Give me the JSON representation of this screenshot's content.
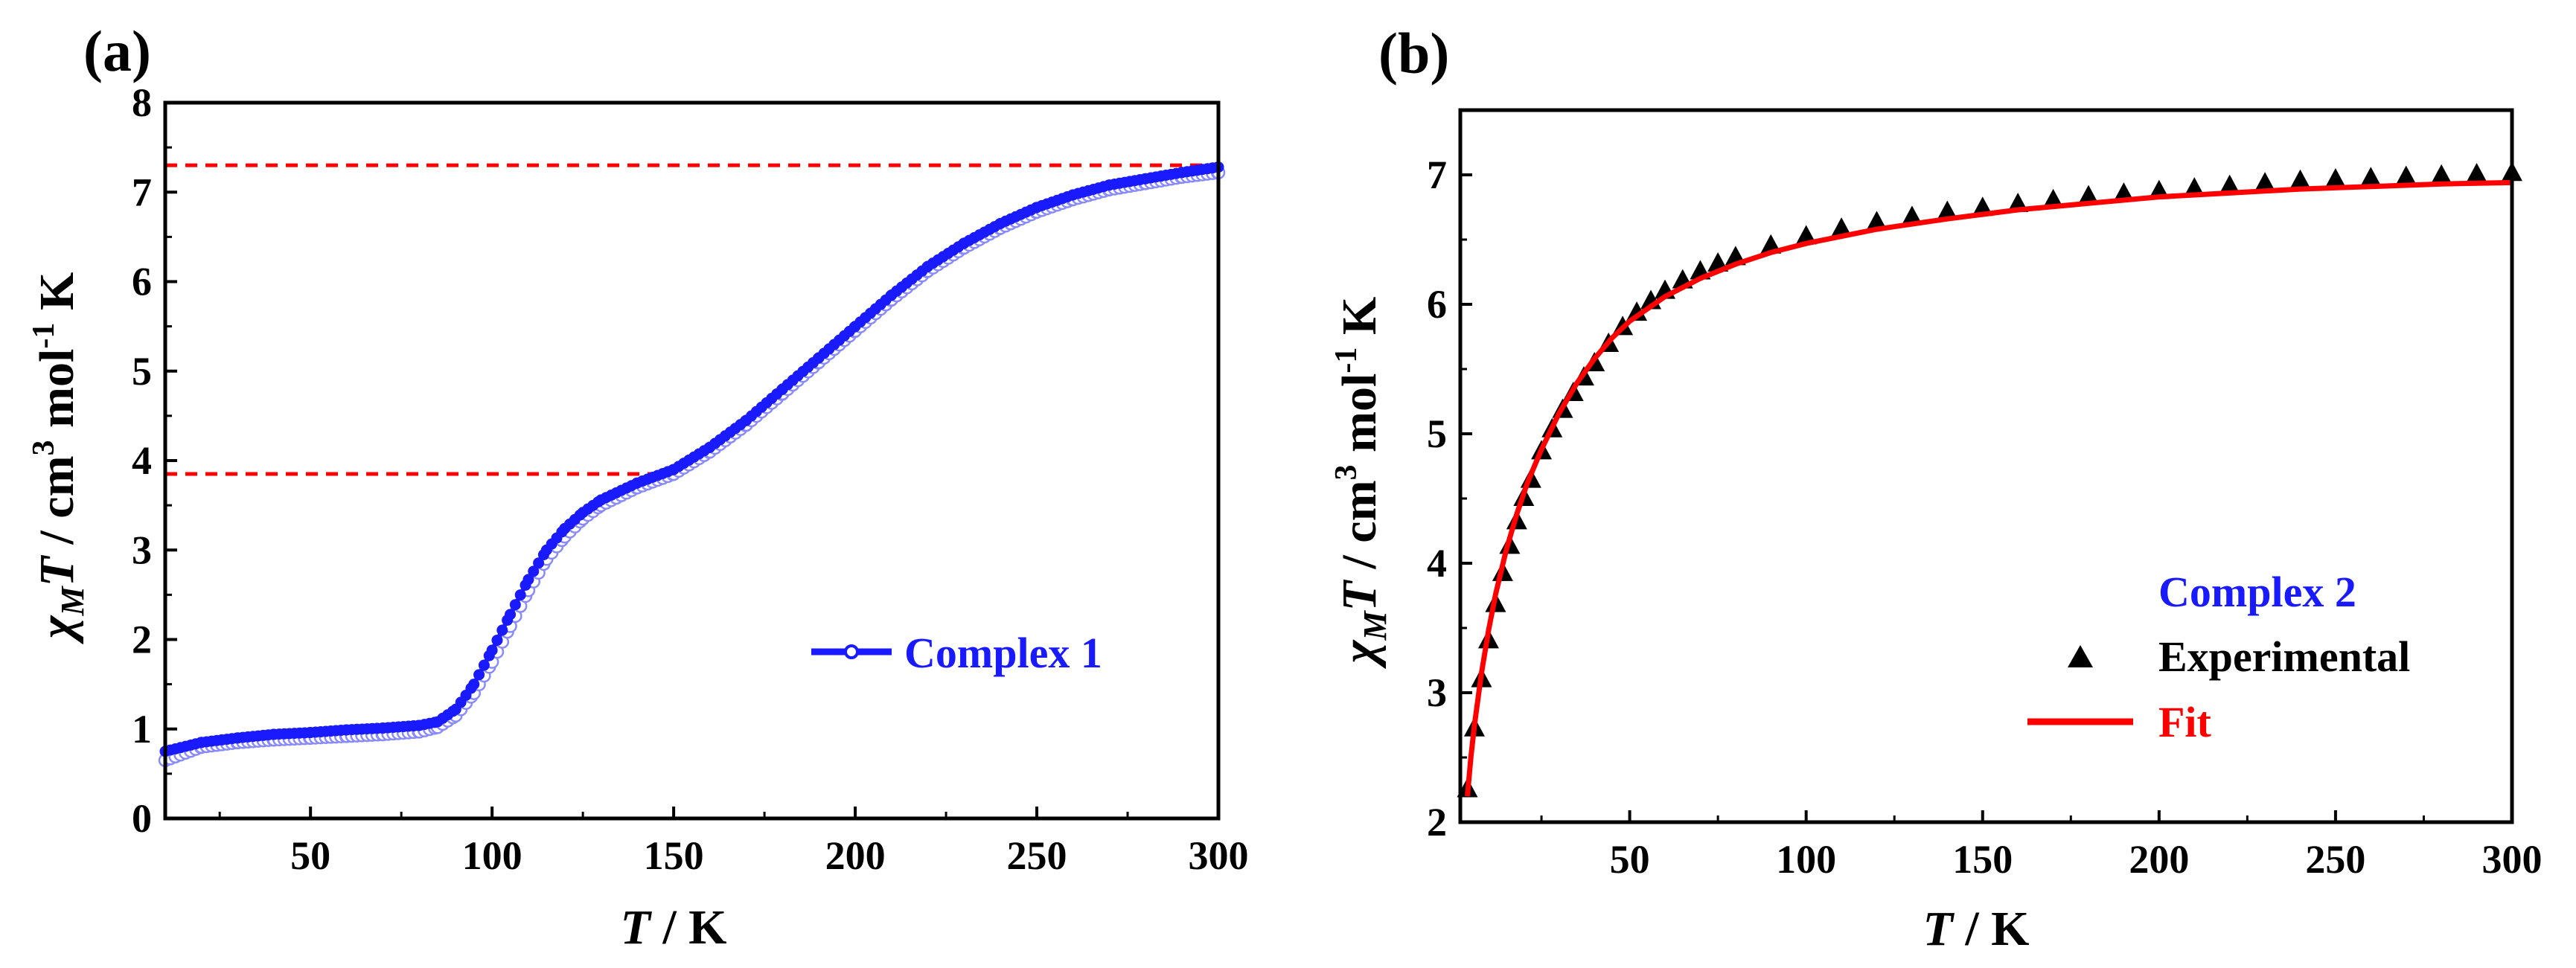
{
  "colors": {
    "complex1": "#1a1aff",
    "complex1_open": "#8a8aff",
    "reference_line": "#ff0000",
    "experimental": "#000000",
    "fit": "#ff0000",
    "complex2_title": "#1a1aff"
  },
  "chart_data": [
    {
      "type": "scatter",
      "panel_label": "(a)",
      "xlabel": {
        "symbol": "T",
        "unit": " / K"
      },
      "ylabel": {
        "symbol": "χ",
        "subscript": "M",
        "symbol2": "T",
        "unit": " / cm",
        "sup": "3",
        "unit2": " mol",
        "sup2": "-1",
        "unit3": " K"
      },
      "xlim": [
        10,
        300
      ],
      "ylim": [
        0,
        8
      ],
      "xticks": [
        50,
        100,
        150,
        200,
        250,
        300
      ],
      "yticks": [
        0,
        1,
        2,
        3,
        4,
        5,
        6,
        7,
        8
      ],
      "reference_lines": [
        {
          "y": 7.3,
          "x_from": 10,
          "x_to": 300
        },
        {
          "y": 3.85,
          "x_from": 10,
          "x_to": 150
        }
      ],
      "legend": {
        "position": "center-right",
        "entries": [
          "Complex 1"
        ]
      },
      "series": [
        {
          "name": "Complex 1",
          "x": [
            10,
            20,
            30,
            40,
            50,
            60,
            70,
            80,
            85,
            90,
            95,
            100,
            105,
            110,
            115,
            120,
            125,
            130,
            140,
            150,
            160,
            170,
            180,
            190,
            200,
            210,
            220,
            230,
            240,
            250,
            260,
            270,
            280,
            290,
            300
          ],
          "cool": [
            0.65,
            0.8,
            0.85,
            0.88,
            0.9,
            0.92,
            0.94,
            0.97,
            1.02,
            1.15,
            1.4,
            1.75,
            2.15,
            2.55,
            2.9,
            3.15,
            3.35,
            3.5,
            3.7,
            3.85,
            4.1,
            4.4,
            4.75,
            5.1,
            5.45,
            5.8,
            6.12,
            6.38,
            6.6,
            6.78,
            6.92,
            7.03,
            7.1,
            7.17,
            7.22
          ],
          "warm": [
            0.75,
            0.85,
            0.9,
            0.94,
            0.96,
            0.99,
            1.01,
            1.04,
            1.08,
            1.22,
            1.5,
            1.88,
            2.28,
            2.67,
            3.0,
            3.24,
            3.42,
            3.56,
            3.75,
            3.9,
            4.15,
            4.45,
            4.8,
            5.15,
            5.5,
            5.85,
            6.17,
            6.43,
            6.65,
            6.83,
            6.97,
            7.08,
            7.15,
            7.22,
            7.28
          ]
        }
      ]
    },
    {
      "type": "scatter",
      "panel_label": "(b)",
      "xlabel": {
        "symbol": "T",
        "unit": " / K"
      },
      "ylabel": {
        "symbol": "χ",
        "subscript": "M",
        "symbol2": "T",
        "unit": " / cm",
        "sup": "3",
        "unit2": " mol",
        "sup2": "-1",
        "unit3": " K"
      },
      "xlim": [
        2,
        300
      ],
      "ylim": [
        2,
        7.5
      ],
      "xticks": [
        50,
        100,
        150,
        200,
        250,
        300
      ],
      "yticks": [
        2,
        3,
        4,
        5,
        6,
        7
      ],
      "legend": {
        "position": "bottom-right",
        "title": "Complex 2",
        "entries": [
          "Experimental",
          "Fit"
        ]
      },
      "series": [
        {
          "name": "Experimental",
          "x": [
            4,
            6,
            8,
            10,
            12,
            14,
            16,
            18,
            20,
            22,
            25,
            28,
            31,
            34,
            37,
            40,
            44,
            48,
            52,
            56,
            60,
            65,
            70,
            75,
            80,
            90,
            100,
            110,
            120,
            130,
            140,
            150,
            160,
            170,
            180,
            190,
            200,
            210,
            220,
            230,
            240,
            250,
            260,
            270,
            280,
            290,
            300
          ],
          "y": [
            2.25,
            2.72,
            3.1,
            3.4,
            3.68,
            3.92,
            4.13,
            4.32,
            4.5,
            4.64,
            4.86,
            5.03,
            5.18,
            5.31,
            5.43,
            5.54,
            5.69,
            5.82,
            5.93,
            6.02,
            6.1,
            6.18,
            6.25,
            6.31,
            6.36,
            6.45,
            6.52,
            6.58,
            6.63,
            6.67,
            6.71,
            6.74,
            6.77,
            6.8,
            6.83,
            6.85,
            6.87,
            6.89,
            6.91,
            6.93,
            6.95,
            6.96,
            6.97,
            6.98,
            6.99,
            7.0,
            7.01
          ]
        },
        {
          "name": "Fit",
          "x": [
            4,
            5,
            6,
            8,
            10,
            12,
            15,
            18,
            21,
            25,
            30,
            35,
            40,
            45,
            50,
            60,
            70,
            80,
            90,
            100,
            120,
            140,
            160,
            180,
            200,
            220,
            240,
            260,
            280,
            300
          ],
          "y": [
            2.2,
            2.5,
            2.75,
            3.15,
            3.48,
            3.76,
            4.1,
            4.38,
            4.62,
            4.88,
            5.16,
            5.39,
            5.58,
            5.74,
            5.87,
            6.06,
            6.2,
            6.31,
            6.4,
            6.47,
            6.58,
            6.66,
            6.73,
            6.78,
            6.83,
            6.86,
            6.89,
            6.91,
            6.93,
            6.94
          ]
        }
      ]
    }
  ]
}
